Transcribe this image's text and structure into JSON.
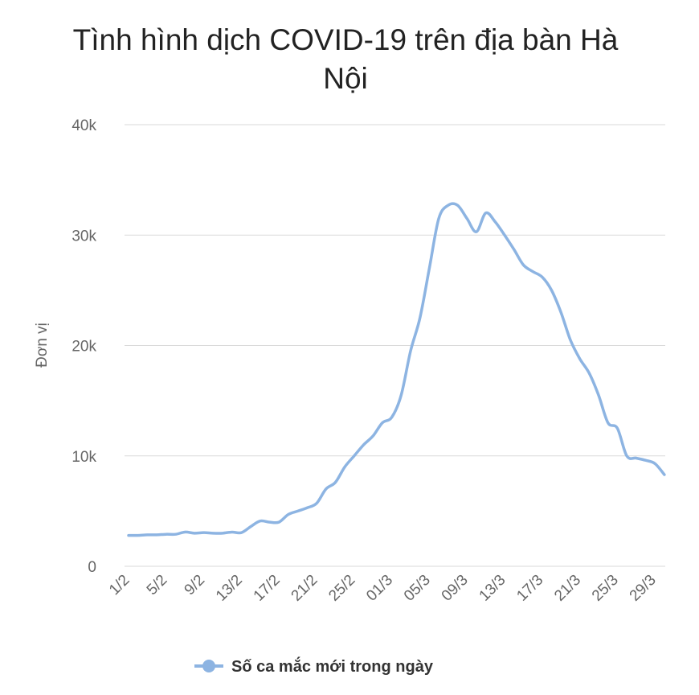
{
  "chart_data": {
    "type": "line",
    "title": "Tình hình dịch COVID-19 trên địa bàn Hà Nội",
    "y_label": "Đơn vị",
    "categories": [
      "1/2",
      null,
      null,
      null,
      "5/2",
      null,
      null,
      null,
      "9/2",
      null,
      null,
      null,
      "13/2",
      null,
      null,
      null,
      "17/2",
      null,
      null,
      null,
      "21/2",
      null,
      null,
      null,
      "25/2",
      null,
      null,
      null,
      "01/3",
      null,
      null,
      null,
      "05/3",
      null,
      null,
      null,
      "09/3",
      null,
      null,
      null,
      "13/3",
      null,
      null,
      null,
      "17/3",
      null,
      null,
      null,
      "21/3",
      null,
      null,
      null,
      "25/3",
      null,
      null,
      null,
      "29/3",
      null
    ],
    "series": [
      {
        "name": "Số ca mắc mới trong ngày",
        "color": "#8db4e2",
        "values": [
          2800,
          2800,
          2850,
          2850,
          2900,
          2900,
          3100,
          3000,
          3050,
          3000,
          3000,
          3100,
          3050,
          3600,
          4100,
          4000,
          4000,
          4700,
          5000,
          5300,
          5700,
          7000,
          7600,
          9000,
          10000,
          11000,
          11800,
          13000,
          13500,
          15500,
          19500,
          22500,
          27000,
          31500,
          32700,
          32700,
          31500,
          30300,
          32000,
          31200,
          30000,
          28700,
          27300,
          26700,
          26200,
          25000,
          23000,
          20500,
          18800,
          17500,
          15500,
          13000,
          12500,
          10000,
          9800,
          9600,
          9300,
          8300
        ]
      }
    ],
    "ylim": [
      0,
      40000
    ],
    "yticks": [
      0,
      {
        "value": 10000,
        "label": "10k"
      },
      {
        "value": 20000,
        "label": "20k"
      },
      {
        "value": 30000,
        "label": "30k"
      },
      {
        "value": 40000,
        "label": "40k"
      }
    ],
    "grid": true,
    "legend": "bottom"
  }
}
